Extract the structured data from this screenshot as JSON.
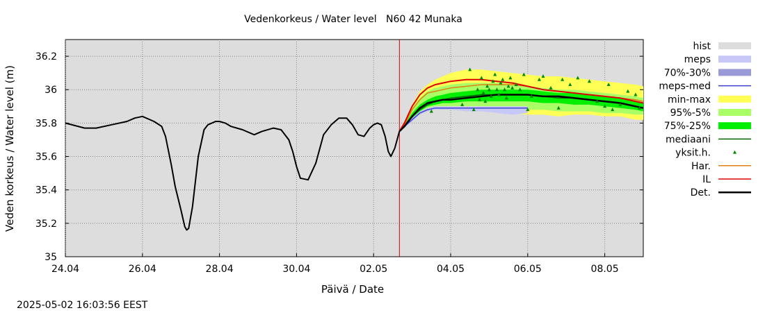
{
  "chart_data": {
    "type": "line",
    "title": "Vedenkorkeus / Water level   N60 42 Munaka",
    "xlabel": "Päivä / Date",
    "ylabel": "Veden korkeus / Water level (m)",
    "timestamp": "2025-05-02 16:03:56 EEST",
    "xlim": [
      0,
      15
    ],
    "ylim": [
      35,
      36.3
    ],
    "grid": true,
    "legend_position": "right",
    "x_ticks": [
      {
        "x": 0,
        "label": "24.04"
      },
      {
        "x": 2,
        "label": "26.04"
      },
      {
        "x": 4,
        "label": "28.04"
      },
      {
        "x": 6,
        "label": "30.04"
      },
      {
        "x": 8,
        "label": "02.05"
      },
      {
        "x": 10,
        "label": "04.05"
      },
      {
        "x": 12,
        "label": "06.05"
      },
      {
        "x": 14,
        "label": "08.05"
      }
    ],
    "y_ticks": [
      {
        "y": 35,
        "label": "35"
      },
      {
        "y": 35.2,
        "label": "35.2"
      },
      {
        "y": 35.4,
        "label": "35.4"
      },
      {
        "y": 35.6,
        "label": "35.6"
      },
      {
        "y": 35.8,
        "label": "35.8"
      },
      {
        "y": 36,
        "label": "36"
      },
      {
        "y": 36.2,
        "label": "36.2"
      }
    ],
    "now_x": 8.67,
    "colors": {
      "background": "#dddddd",
      "grid": "#888888",
      "now_line": "#cc0000",
      "hist": "#dddddd",
      "meps": "#c8c8f8",
      "p70_30": "#9a9ad8",
      "meps_med": "#4040d0",
      "minmax": "#ffff55",
      "p95_5": "#aaff66",
      "p75_25": "#00ee00",
      "median": "#006600",
      "single": "#008800",
      "har": "#e08010",
      "il": "#dd0000",
      "det": "#000000"
    },
    "legend": [
      {
        "key": "hist",
        "label": "hist",
        "kind": "box"
      },
      {
        "key": "meps",
        "label": "meps",
        "kind": "box"
      },
      {
        "key": "p70_30",
        "label": "70%-30%",
        "kind": "box"
      },
      {
        "key": "meps_med",
        "label": "meps-med",
        "kind": "line"
      },
      {
        "key": "minmax",
        "label": "min-max",
        "kind": "box"
      },
      {
        "key": "p95_5",
        "label": "95%-5%",
        "kind": "box"
      },
      {
        "key": "p75_25",
        "label": "75%-25%",
        "kind": "box"
      },
      {
        "key": "median",
        "label": "mediaani",
        "kind": "line"
      },
      {
        "key": "single",
        "label": "yksit.h.",
        "kind": "marker"
      },
      {
        "key": "har",
        "label": "Har.",
        "kind": "line"
      },
      {
        "key": "il",
        "label": "IL",
        "kind": "line"
      },
      {
        "key": "det",
        "label": "Det.",
        "kind": "thickline"
      }
    ],
    "observed": {
      "x": [
        0,
        0.5,
        0.8,
        1.2,
        1.6,
        1.8,
        2.0,
        2.3,
        2.5,
        2.6,
        2.75,
        2.85,
        3.0,
        3.1,
        3.15,
        3.2,
        3.3,
        3.45,
        3.6,
        3.7,
        3.8,
        3.9,
        4.0,
        4.15,
        4.3,
        4.6,
        4.9,
        5.1,
        5.4,
        5.6,
        5.8,
        5.9,
        6.0,
        6.1,
        6.3,
        6.5,
        6.7,
        6.9,
        7.1,
        7.3,
        7.45,
        7.6,
        7.75,
        7.9,
        8.0,
        8.1,
        8.2,
        8.3,
        8.38,
        8.45,
        8.55,
        8.67
      ],
      "y": [
        35.8,
        35.77,
        35.77,
        35.79,
        35.81,
        35.83,
        35.84,
        35.81,
        35.78,
        35.72,
        35.55,
        35.42,
        35.28,
        35.18,
        35.16,
        35.17,
        35.3,
        35.6,
        35.76,
        35.79,
        35.8,
        35.81,
        35.81,
        35.8,
        35.78,
        35.76,
        35.73,
        35.75,
        35.77,
        35.76,
        35.7,
        35.63,
        35.54,
        35.47,
        35.46,
        35.56,
        35.73,
        35.79,
        35.83,
        35.83,
        35.79,
        35.73,
        35.72,
        35.77,
        35.79,
        35.8,
        35.79,
        35.72,
        35.63,
        35.6,
        35.65,
        35.75
      ]
    },
    "forecast_x": [
      8.67,
      8.8,
      9.0,
      9.2,
      9.4,
      9.6,
      9.8,
      10.0,
      10.4,
      10.8,
      11.2,
      11.6,
      12.0,
      12.4,
      12.8,
      13.2,
      13.6,
      14.0,
      14.4,
      14.8,
      15.0
    ],
    "series": {
      "det": [
        35.75,
        35.78,
        35.84,
        35.89,
        35.92,
        35.93,
        35.94,
        35.94,
        35.95,
        35.96,
        35.97,
        35.97,
        35.97,
        35.96,
        35.96,
        35.95,
        35.94,
        35.93,
        35.92,
        35.9,
        35.89
      ],
      "il": [
        35.75,
        35.8,
        35.9,
        35.97,
        36.01,
        36.03,
        36.04,
        36.05,
        36.06,
        36.06,
        36.05,
        36.04,
        36.02,
        36.0,
        35.99,
        35.98,
        35.97,
        35.96,
        35.95,
        35.93,
        35.92
      ],
      "har": [
        35.75,
        35.79,
        35.88,
        35.94,
        35.98,
        35.99,
        36.0,
        36.01,
        36.02,
        36.03,
        36.03,
        36.03,
        36.02,
        36.0,
        35.99,
        35.98,
        35.97,
        35.96,
        35.95,
        35.94,
        35.93
      ],
      "meps_med": [
        35.75,
        35.78,
        35.82,
        35.86,
        35.88,
        35.89,
        35.89,
        35.89,
        35.89,
        35.89,
        35.89,
        35.89,
        35.89,
        null,
        null,
        null,
        null,
        null,
        null,
        null,
        null
      ],
      "median": [
        35.75,
        35.78,
        35.84,
        35.88,
        35.91,
        35.93,
        35.94,
        35.95,
        35.96,
        35.97,
        35.97,
        35.97,
        35.97,
        35.96,
        35.95,
        35.95,
        35.94,
        35.93,
        35.92,
        35.9,
        35.89
      ]
    },
    "bands": {
      "minmax": {
        "low": [
          35.75,
          35.77,
          35.82,
          35.85,
          35.87,
          35.88,
          35.88,
          35.88,
          35.87,
          35.87,
          35.86,
          35.86,
          35.85,
          35.85,
          35.84,
          35.85,
          35.85,
          35.84,
          35.84,
          35.82,
          35.82
        ],
        "high": [
          35.75,
          35.8,
          35.91,
          35.99,
          36.03,
          36.06,
          36.08,
          36.1,
          36.12,
          36.12,
          36.11,
          36.1,
          36.09,
          36.08,
          36.08,
          36.07,
          36.06,
          36.05,
          36.04,
          36.03,
          36.02
        ]
      },
      "p95_5": {
        "low": [
          35.75,
          35.77,
          35.83,
          35.86,
          35.88,
          35.89,
          35.9,
          35.9,
          35.9,
          35.9,
          35.89,
          35.89,
          35.88,
          35.88,
          35.87,
          35.87,
          35.87,
          35.86,
          35.86,
          35.85,
          35.85
        ],
        "high": [
          35.75,
          35.79,
          35.88,
          35.95,
          35.99,
          36.01,
          36.02,
          36.03,
          36.04,
          36.04,
          36.04,
          36.03,
          36.02,
          36.01,
          36.0,
          36.0,
          35.99,
          35.98,
          35.97,
          35.96,
          35.95
        ]
      },
      "p75_25": {
        "low": [
          35.75,
          35.78,
          35.83,
          35.87,
          35.9,
          35.91,
          35.92,
          35.92,
          35.93,
          35.93,
          35.93,
          35.93,
          35.93,
          35.92,
          35.92,
          35.91,
          35.91,
          35.9,
          35.89,
          35.88,
          35.87
        ],
        "high": [
          35.75,
          35.79,
          35.86,
          35.91,
          35.94,
          35.96,
          35.97,
          35.98,
          35.99,
          36.0,
          36.0,
          36.0,
          36.0,
          35.99,
          35.98,
          35.98,
          35.97,
          35.96,
          35.95,
          35.93,
          35.92
        ]
      },
      "meps": {
        "low": [
          35.75,
          35.77,
          35.81,
          35.85,
          35.87,
          35.88,
          35.88,
          35.88,
          35.87,
          35.87,
          35.86,
          35.85,
          35.86,
          null,
          null,
          null,
          null,
          null,
          null,
          null,
          null
        ],
        "high": [
          35.75,
          35.79,
          35.83,
          35.87,
          35.89,
          35.9,
          35.9,
          35.9,
          35.9,
          35.9,
          35.9,
          35.9,
          35.9,
          null,
          null,
          null,
          null,
          null,
          null,
          null,
          null
        ]
      }
    },
    "single_points": {
      "x": [
        9.5,
        10.3,
        10.5,
        10.6,
        10.7,
        10.75,
        10.8,
        10.85,
        10.9,
        10.95,
        11.0,
        11.05,
        11.1,
        11.15,
        11.2,
        11.25,
        11.3,
        11.35,
        11.4,
        11.45,
        11.5,
        11.55,
        11.6,
        11.7,
        11.8,
        11.9,
        12.0,
        12.1,
        12.3,
        12.4,
        12.6,
        12.8,
        12.9,
        13.1,
        13.3,
        13.6,
        13.8,
        14.0,
        14.1,
        14.2,
        14.4,
        14.6,
        14.8,
        14.9
      ],
      "y": [
        35.87,
        35.91,
        36.12,
        35.88,
        36.0,
        35.94,
        36.07,
        35.98,
        35.93,
        36.02,
        36.0,
        35.96,
        36.05,
        36.09,
        36.0,
        35.97,
        36.04,
        36.06,
        36.0,
        35.95,
        36.02,
        36.07,
        36.01,
        36.03,
        36.0,
        36.09,
        35.88,
        35.96,
        36.06,
        36.08,
        36.01,
        35.89,
        36.06,
        36.03,
        36.07,
        36.05,
        35.93,
        35.9,
        36.03,
        35.88,
        35.91,
        35.99,
        35.97,
        35.89
      ]
    }
  }
}
